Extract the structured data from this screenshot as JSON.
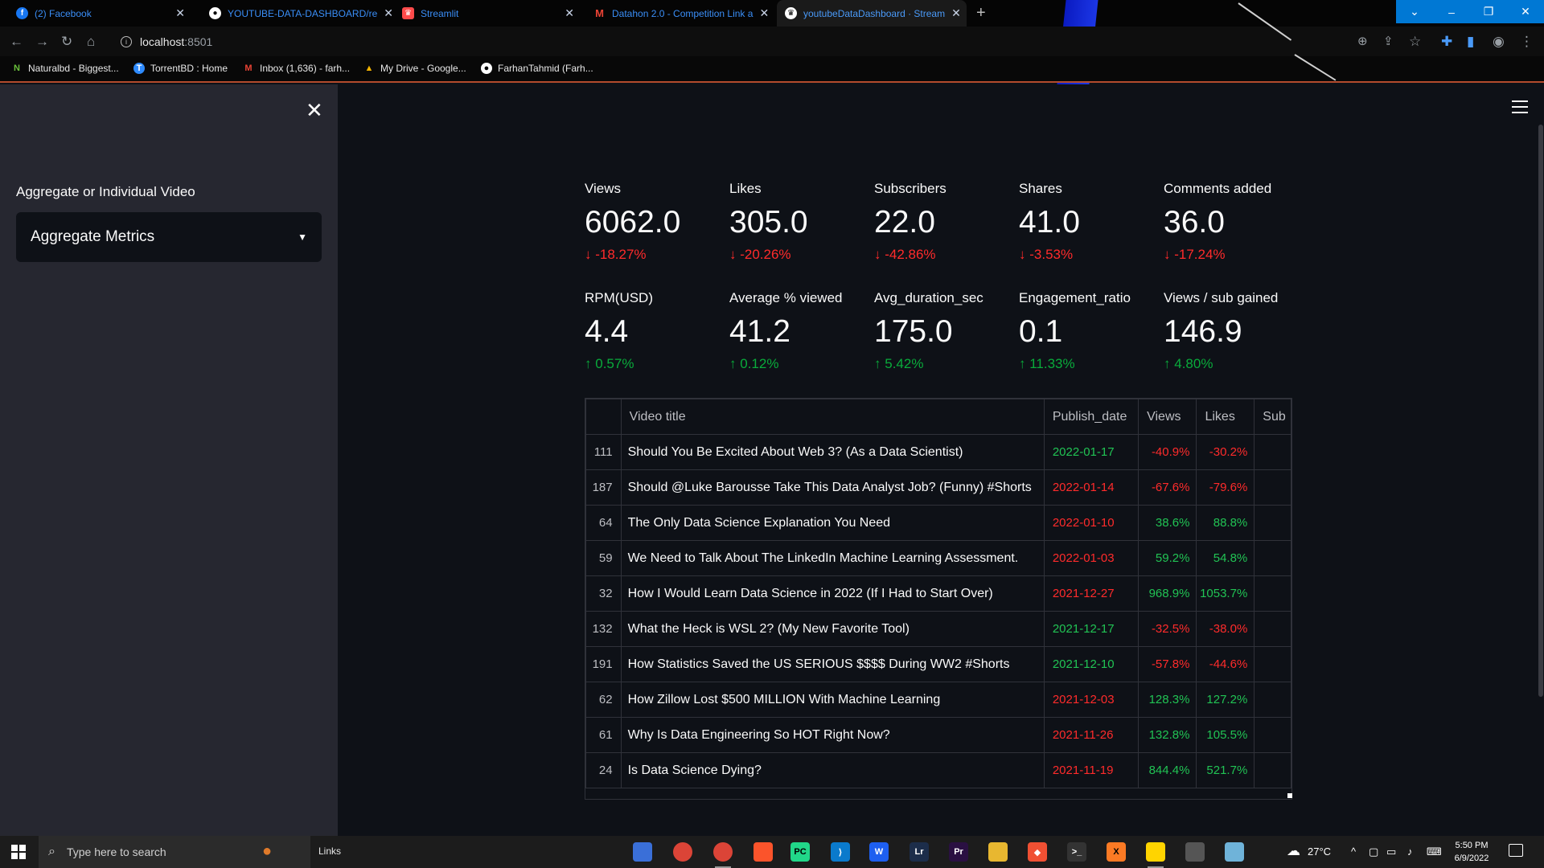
{
  "browser": {
    "tabs": [
      {
        "label": "(2) Facebook",
        "icon": "facebook-icon",
        "color": "#1877f2",
        "glyph": "f"
      },
      {
        "label": "YOUTUBE-DATA-DASHBOARD/re",
        "icon": "github-icon",
        "color": "#ffffff",
        "glyph": "●"
      },
      {
        "label": "Streamlit",
        "icon": "streamlit-icon",
        "color": "#ff4b4b",
        "glyph": "♛"
      },
      {
        "label": "Datahon 2.0 - Competition Link a",
        "icon": "gmail-icon",
        "color": "#ea4335",
        "glyph": "M"
      },
      {
        "label": "youtubeDataDashboard · Stream",
        "icon": "streamlit-icon",
        "color": "#ffffff",
        "glyph": "♛"
      }
    ],
    "url_host": "localhost",
    "url_port": ":8501",
    "bookmarks": [
      {
        "label": "Naturalbd - Biggest...",
        "icon": "naturalbd-icon",
        "color": "#6ac23b",
        "glyph": "N"
      },
      {
        "label": "TorrentBD : Home",
        "icon": "torrentbd-icon",
        "color": "#2e8bff",
        "glyph": "T"
      },
      {
        "label": "Inbox (1,636) - farh...",
        "icon": "gmail-icon",
        "color": "#ea4335",
        "glyph": "M"
      },
      {
        "label": "My Drive - Google...",
        "icon": "google-drive-icon",
        "color": "#f4b400",
        "glyph": "▲"
      },
      {
        "label": "FarhanTahmid (Farh...",
        "icon": "github-icon",
        "color": "#ffffff",
        "glyph": "●"
      }
    ]
  },
  "sidebar": {
    "select_label": "Aggregate or Individual Video",
    "select_value": "Aggregate Metrics"
  },
  "metrics": [
    {
      "label": "Views",
      "value": "6062.0",
      "delta": "-18.27%",
      "dir": "down"
    },
    {
      "label": "Likes",
      "value": "305.0",
      "delta": "-20.26%",
      "dir": "down"
    },
    {
      "label": "Subscribers",
      "value": "22.0",
      "delta": "-42.86%",
      "dir": "down"
    },
    {
      "label": "Shares",
      "value": "41.0",
      "delta": "-3.53%",
      "dir": "down"
    },
    {
      "label": "Comments added",
      "value": "36.0",
      "delta": "-17.24%",
      "dir": "down"
    },
    {
      "label": "RPM(USD)",
      "value": "4.4",
      "delta": "0.57%",
      "dir": "up"
    },
    {
      "label": "Average % viewed",
      "value": "41.2",
      "delta": "0.12%",
      "dir": "up"
    },
    {
      "label": "Avg_duration_sec",
      "value": "175.0",
      "delta": "5.42%",
      "dir": "up"
    },
    {
      "label": "Engagement_ratio",
      "value": "0.1",
      "delta": "11.33%",
      "dir": "up"
    },
    {
      "label": "Views / sub gained",
      "value": "146.9",
      "delta": "4.80%",
      "dir": "up"
    }
  ],
  "table": {
    "columns": [
      "",
      "Video title",
      "Publish_date",
      "Views",
      "Likes",
      "Sub"
    ],
    "rows": [
      {
        "idx": "111",
        "title": "Should You Be Excited About Web 3? (As a Data Scientist)",
        "date": "2022-01-17",
        "date_color": "green",
        "views": "-40.9%",
        "views_color": "red",
        "likes": "-30.2%",
        "likes_color": "red"
      },
      {
        "idx": "187",
        "title": "Should  @Luke Barousse Take This Data Analyst Job? (Funny) #Shorts",
        "date": "2022-01-14",
        "date_color": "red",
        "views": "-67.6%",
        "views_color": "red",
        "likes": "-79.6%",
        "likes_color": "red"
      },
      {
        "idx": "64",
        "title": "The Only Data Science Explanation You Need",
        "date": "2022-01-10",
        "date_color": "red",
        "views": "38.6%",
        "views_color": "green",
        "likes": "88.8%",
        "likes_color": "green"
      },
      {
        "idx": "59",
        "title": "We Need to Talk About The LinkedIn Machine Learning Assessment.",
        "date": "2022-01-03",
        "date_color": "red",
        "views": "59.2%",
        "views_color": "green",
        "likes": "54.8%",
        "likes_color": "green"
      },
      {
        "idx": "32",
        "title": "How I Would Learn Data Science in 2022 (If I Had to Start Over)",
        "date": "2021-12-27",
        "date_color": "red",
        "views": "968.9%",
        "views_color": "green",
        "likes": "1053.7%",
        "likes_color": "green"
      },
      {
        "idx": "132",
        "title": "What the Heck is WSL 2? (My New Favorite Tool)",
        "date": "2021-12-17",
        "date_color": "green",
        "views": "-32.5%",
        "views_color": "red",
        "likes": "-38.0%",
        "likes_color": "red"
      },
      {
        "idx": "191",
        "title": "How Statistics Saved the US SERIOUS $$$$ During WW2 #Shorts",
        "date": "2021-12-10",
        "date_color": "green",
        "views": "-57.8%",
        "views_color": "red",
        "likes": "-44.6%",
        "likes_color": "red"
      },
      {
        "idx": "62",
        "title": "How Zillow Lost $500 MILLION With Machine Learning",
        "date": "2021-12-03",
        "date_color": "red",
        "views": "128.3%",
        "views_color": "green",
        "likes": "127.2%",
        "likes_color": "green"
      },
      {
        "idx": "61",
        "title": "Why Is Data Engineering So HOT Right Now?",
        "date": "2021-11-26",
        "date_color": "red",
        "views": "132.8%",
        "views_color": "green",
        "likes": "105.5%",
        "likes_color": "green"
      },
      {
        "idx": "24",
        "title": "Is Data Science Dying?",
        "date": "2021-11-19",
        "date_color": "red",
        "views": "844.4%",
        "views_color": "green",
        "likes": "521.7%",
        "likes_color": "green"
      }
    ]
  },
  "taskbar": {
    "search_placeholder": "Type here to search",
    "links_label": "Links",
    "weather": "27°C",
    "time": "5:50 PM",
    "date": "6/9/2022",
    "apps": [
      {
        "name": "desktop-app-icon",
        "color": "#3a6fd8",
        "glyph": ""
      },
      {
        "name": "chrome-icon",
        "color": "#db4437",
        "glyph": ""
      },
      {
        "name": "chrome-active-icon",
        "color": "#db4437",
        "glyph": ""
      },
      {
        "name": "brave-icon",
        "color": "#fb542b",
        "glyph": ""
      },
      {
        "name": "pycharm-icon",
        "color": "#21d789",
        "glyph": "PC"
      },
      {
        "name": "vscode-icon",
        "color": "#0a7acc",
        "glyph": "⟩"
      },
      {
        "name": "app-w-icon",
        "color": "#1e5ff0",
        "glyph": "W"
      },
      {
        "name": "lightroom-icon",
        "color": "#1c2d4a",
        "glyph": "Lr"
      },
      {
        "name": "premiere-icon",
        "color": "#2a1042",
        "glyph": "Pr"
      },
      {
        "name": "file-explorer-icon",
        "color": "#e8b730",
        "glyph": ""
      },
      {
        "name": "git-icon",
        "color": "#f05033",
        "glyph": "◆"
      },
      {
        "name": "terminal-icon",
        "color": "#333333",
        "glyph": ">_"
      },
      {
        "name": "xampp-icon",
        "color": "#fb7a24",
        "glyph": "X"
      },
      {
        "name": "sticky-app-icon",
        "color": "#ffd400",
        "glyph": ""
      },
      {
        "name": "window-app-icon",
        "color": "#555555",
        "glyph": ""
      },
      {
        "name": "editor-app-icon",
        "color": "#6fb3d9",
        "glyph": ""
      }
    ]
  }
}
